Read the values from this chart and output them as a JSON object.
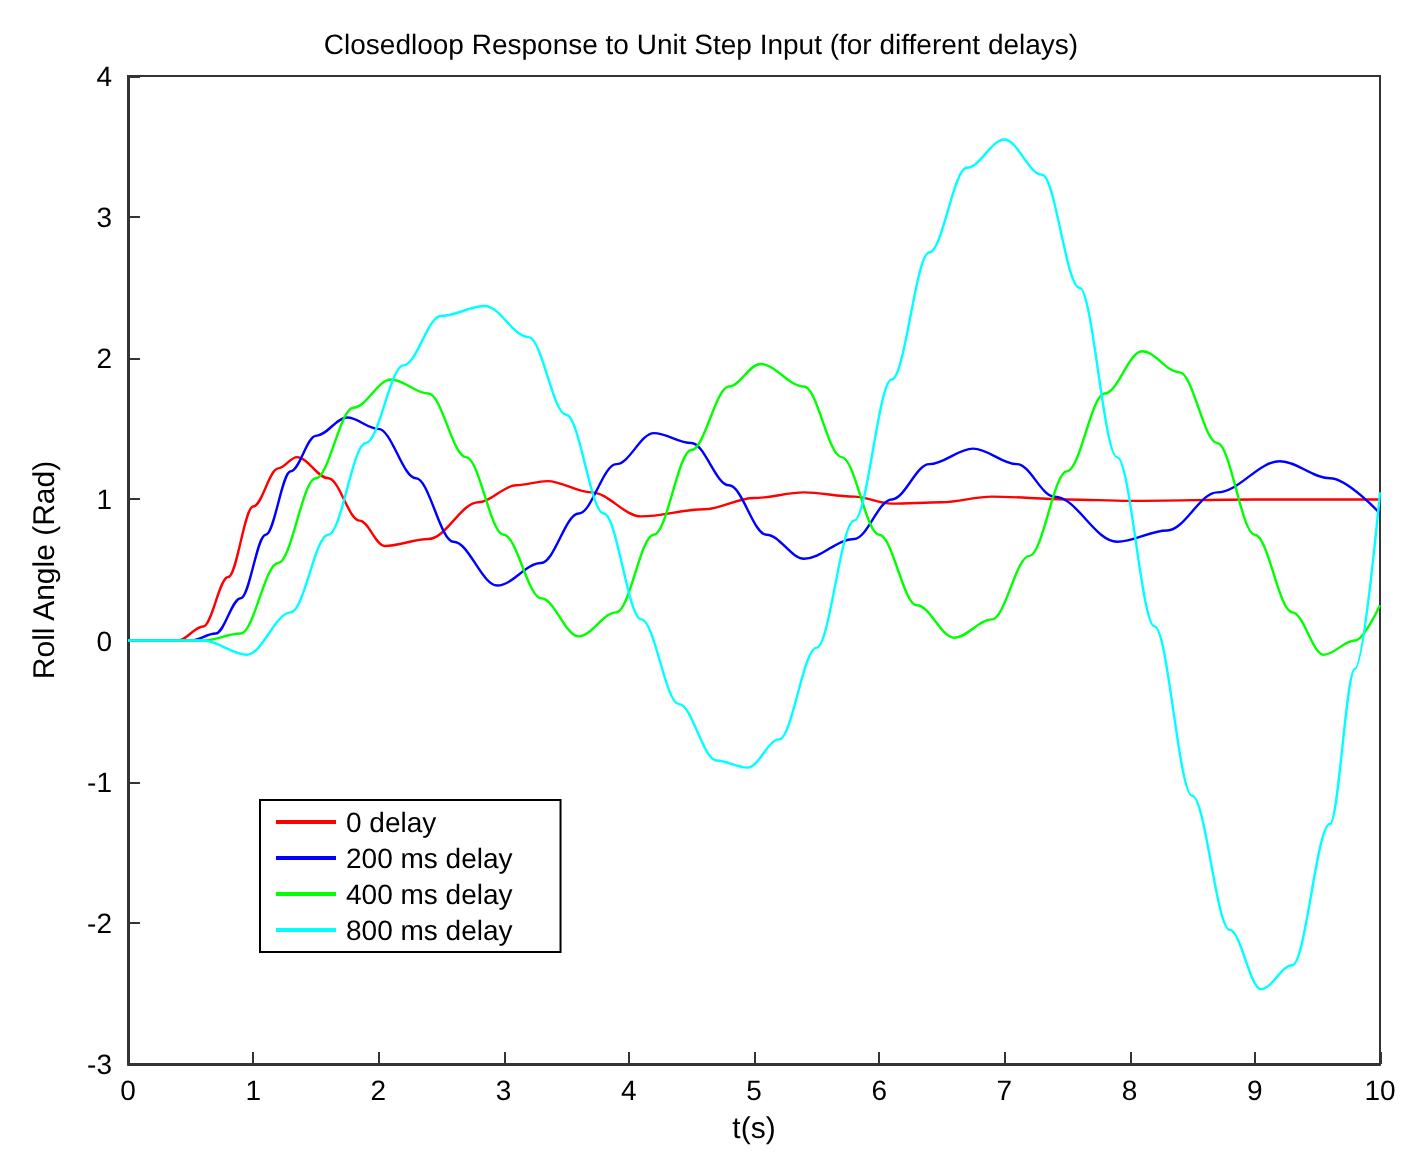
{
  "chart_data": {
    "type": "line",
    "title": "Closedloop Response to Unit Step Input (for different delays)",
    "xlabel": "t(s)",
    "ylabel": "Roll Angle (Rad)",
    "xlim": [
      0,
      10
    ],
    "xticks": [
      0,
      1,
      2,
      3,
      4,
      5,
      6,
      7,
      8,
      9,
      10
    ],
    "ylim": [
      -3,
      4
    ],
    "yticks": [
      -3,
      -2,
      -1,
      0,
      1,
      2,
      3,
      4
    ],
    "grid": false,
    "legend": "bottom left",
    "marker": "none",
    "line_style": "solid",
    "series": [
      {
        "name": "0 delay",
        "color": "#ff0000",
        "x": [
          0,
          0.4,
          0.6,
          0.8,
          1.0,
          1.2,
          1.35,
          1.6,
          1.85,
          2.05,
          2.4,
          2.8,
          3.1,
          3.35,
          3.7,
          4.1,
          4.6,
          5.0,
          5.4,
          5.8,
          6.1,
          6.5,
          6.9,
          7.5,
          8,
          9,
          10
        ],
        "values": [
          0,
          0,
          0.1,
          0.45,
          0.95,
          1.22,
          1.3,
          1.15,
          0.85,
          0.67,
          0.72,
          0.98,
          1.1,
          1.13,
          1.05,
          0.88,
          0.93,
          1.01,
          1.05,
          1.02,
          0.97,
          0.98,
          1.02,
          1.0,
          0.99,
          1.0,
          1.0
        ]
      },
      {
        "name": "200 ms delay",
        "color": "#0000ff",
        "x": [
          0,
          0.5,
          0.7,
          0.9,
          1.1,
          1.3,
          1.5,
          1.75,
          2.0,
          2.3,
          2.6,
          2.95,
          3.3,
          3.6,
          3.9,
          4.2,
          4.5,
          4.8,
          5.1,
          5.4,
          5.8,
          6.1,
          6.4,
          6.75,
          7.1,
          7.4,
          7.9,
          8.3,
          8.7,
          9.2,
          9.6,
          10
        ],
        "values": [
          0,
          0,
          0.05,
          0.3,
          0.75,
          1.2,
          1.45,
          1.58,
          1.5,
          1.15,
          0.7,
          0.39,
          0.55,
          0.9,
          1.25,
          1.47,
          1.4,
          1.1,
          0.75,
          0.58,
          0.72,
          1.0,
          1.25,
          1.36,
          1.25,
          1.02,
          0.7,
          0.78,
          1.05,
          1.27,
          1.15,
          0.9
        ]
      },
      {
        "name": "400 ms delay",
        "color": "#00ff00",
        "x": [
          0,
          0.6,
          0.9,
          1.2,
          1.5,
          1.8,
          2.1,
          2.4,
          2.7,
          3.0,
          3.3,
          3.6,
          3.9,
          4.2,
          4.5,
          4.8,
          5.05,
          5.4,
          5.7,
          6.0,
          6.3,
          6.6,
          6.9,
          7.2,
          7.5,
          7.8,
          8.1,
          8.4,
          8.7,
          9.0,
          9.3,
          9.55,
          9.8,
          10
        ],
        "values": [
          0,
          0,
          0.05,
          0.55,
          1.15,
          1.65,
          1.85,
          1.75,
          1.3,
          0.75,
          0.3,
          0.03,
          0.2,
          0.75,
          1.35,
          1.8,
          1.96,
          1.8,
          1.3,
          0.75,
          0.25,
          0.02,
          0.15,
          0.6,
          1.2,
          1.75,
          2.05,
          1.9,
          1.4,
          0.75,
          0.2,
          -0.1,
          0.0,
          0.25
        ]
      },
      {
        "name": "800 ms delay",
        "color": "#00ffff",
        "x": [
          0,
          0.6,
          0.95,
          1.3,
          1.6,
          1.9,
          2.2,
          2.5,
          2.85,
          3.2,
          3.5,
          3.8,
          4.1,
          4.4,
          4.7,
          4.95,
          5.2,
          5.5,
          5.8,
          6.1,
          6.4,
          6.7,
          7.0,
          7.3,
          7.6,
          7.9,
          8.2,
          8.5,
          8.8,
          9.05,
          9.3,
          9.6,
          9.8,
          10
        ],
        "values": [
          0,
          0,
          -0.1,
          0.2,
          0.75,
          1.4,
          1.95,
          2.3,
          2.37,
          2.15,
          1.6,
          0.9,
          0.15,
          -0.45,
          -0.85,
          -0.9,
          -0.7,
          -0.05,
          0.85,
          1.85,
          2.75,
          3.35,
          3.55,
          3.3,
          2.5,
          1.3,
          0.1,
          -1.1,
          -2.05,
          -2.47,
          -2.3,
          -1.3,
          -0.2,
          1.05
        ]
      }
    ]
  }
}
